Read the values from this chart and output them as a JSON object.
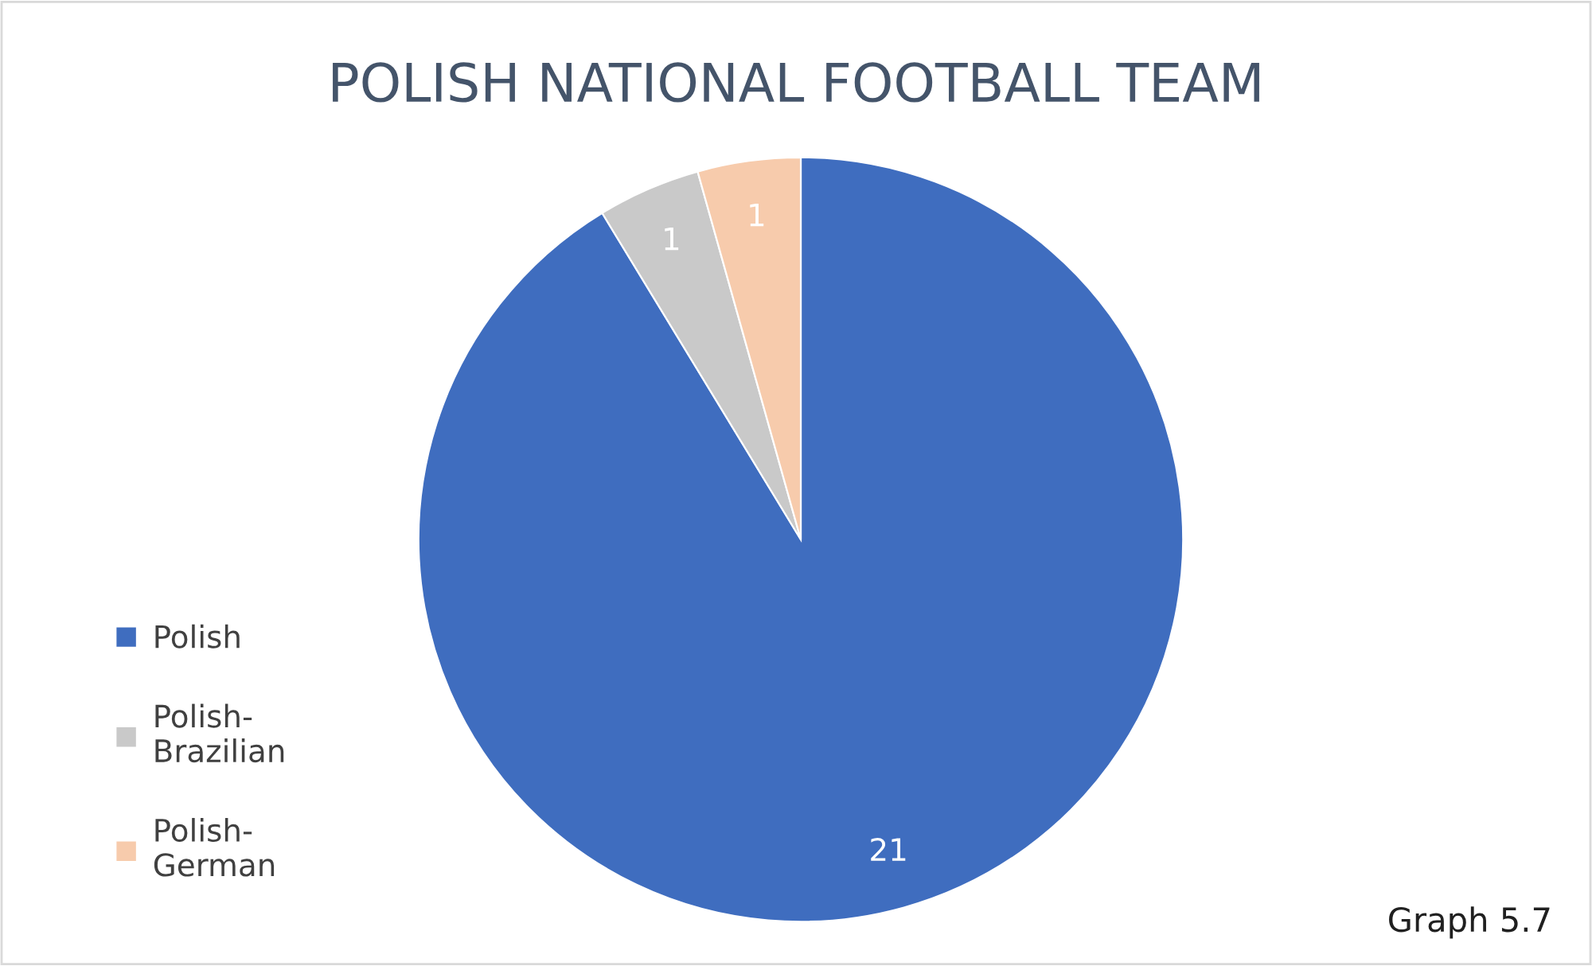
{
  "chart_data": {
    "type": "pie",
    "title": "POLISH NATIONAL FOOTBALL TEAM",
    "categories": [
      "Polish",
      "Polish-Brazilian",
      "Polish-German"
    ],
    "values": [
      21,
      1,
      1
    ],
    "colors": [
      "#3f6dbf",
      "#c9c9c9",
      "#f7cbac"
    ],
    "data_labels": true,
    "legend": "left",
    "annotations": [
      "Graph 5.7"
    ]
  }
}
